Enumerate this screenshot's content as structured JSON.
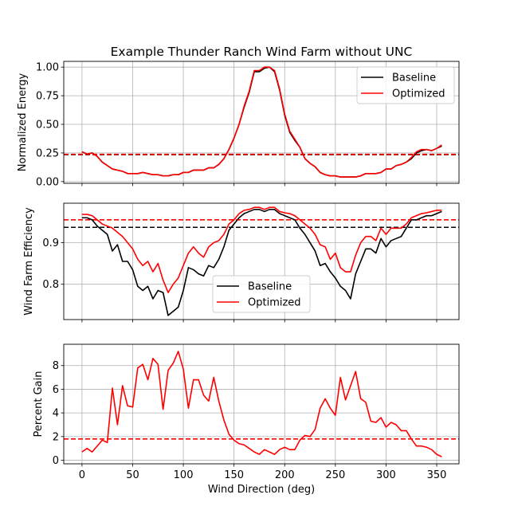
{
  "figure": {
    "title": "Example Thunder Ranch Wind Farm without UNC"
  },
  "colors": {
    "baseline": "#000000",
    "optimized": "#ff0000",
    "grid": "#b0b0b0"
  },
  "chart_data": [
    {
      "type": "line",
      "title": "Example Thunder Ranch Wind Farm without UNC",
      "xlabel": "",
      "ylabel": "Normalized Energy",
      "xlim": [
        -18,
        372
      ],
      "ylim": [
        -0.015,
        1.05
      ],
      "xticks": [
        0,
        50,
        100,
        150,
        200,
        250,
        300,
        350
      ],
      "xticklabels_visible": false,
      "yticks": [
        0.0,
        0.25,
        0.5,
        0.75,
        1.0
      ],
      "yticklabels": [
        "0.00",
        "0.25",
        "0.50",
        "0.75",
        "1.00"
      ],
      "grid": true,
      "legend": {
        "placement": "upper right",
        "entries": [
          "Baseline",
          "Optimized"
        ]
      },
      "hlines": [
        {
          "y": 0.235,
          "color": "black",
          "style": "dashed"
        },
        {
          "y": 0.238,
          "color": "red",
          "style": "dashed"
        }
      ],
      "x": [
        0,
        5,
        10,
        15,
        20,
        25,
        30,
        35,
        40,
        45,
        50,
        55,
        60,
        65,
        70,
        75,
        80,
        85,
        90,
        95,
        100,
        105,
        110,
        115,
        120,
        125,
        130,
        135,
        140,
        145,
        150,
        155,
        160,
        165,
        170,
        175,
        180,
        185,
        190,
        195,
        200,
        205,
        210,
        215,
        220,
        225,
        230,
        235,
        240,
        245,
        250,
        255,
        260,
        265,
        270,
        275,
        280,
        285,
        290,
        295,
        300,
        305,
        310,
        315,
        320,
        325,
        330,
        335,
        340,
        345,
        350,
        355
      ],
      "series": [
        {
          "name": "Baseline",
          "values": [
            0.26,
            0.24,
            0.25,
            0.22,
            0.17,
            0.14,
            0.11,
            0.1,
            0.09,
            0.07,
            0.07,
            0.07,
            0.08,
            0.07,
            0.06,
            0.06,
            0.05,
            0.05,
            0.06,
            0.06,
            0.08,
            0.08,
            0.1,
            0.1,
            0.1,
            0.12,
            0.12,
            0.15,
            0.2,
            0.28,
            0.38,
            0.5,
            0.65,
            0.78,
            0.96,
            0.96,
            0.99,
            1.0,
            0.96,
            0.8,
            0.58,
            0.43,
            0.36,
            0.3,
            0.2,
            0.16,
            0.13,
            0.08,
            0.06,
            0.05,
            0.05,
            0.04,
            0.04,
            0.04,
            0.04,
            0.05,
            0.07,
            0.07,
            0.07,
            0.08,
            0.11,
            0.11,
            0.14,
            0.15,
            0.17,
            0.2,
            0.25,
            0.27,
            0.28,
            0.27,
            0.29,
            0.31
          ]
        },
        {
          "name": "Optimized",
          "values": [
            0.26,
            0.24,
            0.25,
            0.22,
            0.17,
            0.14,
            0.11,
            0.1,
            0.09,
            0.07,
            0.07,
            0.07,
            0.08,
            0.07,
            0.06,
            0.06,
            0.05,
            0.05,
            0.06,
            0.06,
            0.08,
            0.08,
            0.1,
            0.1,
            0.1,
            0.12,
            0.12,
            0.15,
            0.2,
            0.28,
            0.38,
            0.5,
            0.66,
            0.79,
            0.97,
            0.97,
            1.0,
            1.0,
            0.97,
            0.81,
            0.59,
            0.44,
            0.37,
            0.3,
            0.2,
            0.16,
            0.13,
            0.08,
            0.06,
            0.05,
            0.05,
            0.04,
            0.04,
            0.04,
            0.04,
            0.05,
            0.07,
            0.07,
            0.07,
            0.08,
            0.11,
            0.11,
            0.14,
            0.15,
            0.17,
            0.21,
            0.26,
            0.28,
            0.28,
            0.27,
            0.29,
            0.32
          ]
        }
      ]
    },
    {
      "type": "line",
      "xlabel": "",
      "ylabel": "Wind Farm Efficiency",
      "xlim": [
        -18,
        372
      ],
      "ylim": [
        0.715,
        0.995
      ],
      "xticks": [
        0,
        50,
        100,
        150,
        200,
        250,
        300,
        350
      ],
      "xticklabels_visible": false,
      "yticks": [
        0.8,
        0.9
      ],
      "yticklabels": [
        "0.8",
        "0.9"
      ],
      "grid": true,
      "legend": {
        "placement": "lower center",
        "entries": [
          "Baseline",
          "Optimized"
        ]
      },
      "hlines": [
        {
          "y": 0.937,
          "color": "black",
          "style": "dashed"
        },
        {
          "y": 0.955,
          "color": "red",
          "style": "dashed"
        }
      ],
      "x": [
        0,
        5,
        10,
        15,
        20,
        25,
        30,
        35,
        40,
        45,
        50,
        55,
        60,
        65,
        70,
        75,
        80,
        85,
        90,
        95,
        100,
        105,
        110,
        115,
        120,
        125,
        130,
        135,
        140,
        145,
        150,
        155,
        160,
        165,
        170,
        175,
        180,
        185,
        190,
        195,
        200,
        205,
        210,
        215,
        220,
        225,
        230,
        235,
        240,
        245,
        250,
        255,
        260,
        265,
        270,
        275,
        280,
        285,
        290,
        295,
        300,
        305,
        310,
        315,
        320,
        325,
        330,
        335,
        340,
        345,
        350,
        355
      ],
      "series": [
        {
          "name": "Baseline",
          "values": [
            0.96,
            0.96,
            0.955,
            0.94,
            0.93,
            0.92,
            0.88,
            0.895,
            0.855,
            0.855,
            0.835,
            0.795,
            0.785,
            0.795,
            0.765,
            0.785,
            0.78,
            0.725,
            0.735,
            0.745,
            0.785,
            0.84,
            0.835,
            0.825,
            0.82,
            0.845,
            0.84,
            0.86,
            0.89,
            0.93,
            0.945,
            0.96,
            0.97,
            0.975,
            0.98,
            0.98,
            0.975,
            0.98,
            0.98,
            0.97,
            0.965,
            0.96,
            0.955,
            0.935,
            0.92,
            0.9,
            0.88,
            0.845,
            0.85,
            0.83,
            0.815,
            0.795,
            0.785,
            0.765,
            0.825,
            0.855,
            0.885,
            0.885,
            0.875,
            0.91,
            0.89,
            0.905,
            0.91,
            0.915,
            0.935,
            0.955,
            0.955,
            0.96,
            0.965,
            0.965,
            0.97,
            0.975
          ]
        },
        {
          "name": "Optimized",
          "values": [
            0.968,
            0.968,
            0.965,
            0.955,
            0.945,
            0.94,
            0.935,
            0.925,
            0.915,
            0.9,
            0.885,
            0.86,
            0.845,
            0.855,
            0.83,
            0.85,
            0.81,
            0.78,
            0.8,
            0.815,
            0.845,
            0.875,
            0.89,
            0.875,
            0.865,
            0.89,
            0.9,
            0.905,
            0.92,
            0.945,
            0.955,
            0.97,
            0.978,
            0.98,
            0.985,
            0.985,
            0.98,
            0.985,
            0.985,
            0.975,
            0.972,
            0.97,
            0.965,
            0.955,
            0.945,
            0.935,
            0.92,
            0.895,
            0.89,
            0.86,
            0.875,
            0.84,
            0.83,
            0.83,
            0.87,
            0.9,
            0.915,
            0.915,
            0.905,
            0.935,
            0.92,
            0.935,
            0.935,
            0.935,
            0.945,
            0.96,
            0.965,
            0.97,
            0.972,
            0.975,
            0.978,
            0.978
          ]
        }
      ]
    },
    {
      "type": "line",
      "xlabel": "Wind Direction (deg)",
      "ylabel": "Percent Gain",
      "xlim": [
        -18,
        372
      ],
      "ylim": [
        -0.3,
        9.8
      ],
      "xticks": [
        0,
        50,
        100,
        150,
        200,
        250,
        300,
        350
      ],
      "xticklabels": [
        "0",
        "50",
        "100",
        "150",
        "200",
        "250",
        "300",
        "350"
      ],
      "yticks": [
        0,
        2,
        4,
        6,
        8
      ],
      "yticklabels": [
        "0",
        "2",
        "4",
        "6",
        "8"
      ],
      "grid": true,
      "legend": null,
      "hlines": [
        {
          "y": 1.8,
          "color": "red",
          "style": "dashed"
        }
      ],
      "x": [
        0,
        5,
        10,
        15,
        20,
        25,
        30,
        35,
        40,
        45,
        50,
        55,
        60,
        65,
        70,
        75,
        80,
        85,
        90,
        95,
        100,
        105,
        110,
        115,
        120,
        125,
        130,
        135,
        140,
        145,
        150,
        155,
        160,
        165,
        170,
        175,
        180,
        185,
        190,
        195,
        200,
        205,
        210,
        215,
        220,
        225,
        230,
        235,
        240,
        245,
        250,
        255,
        260,
        265,
        270,
        275,
        280,
        285,
        290,
        295,
        300,
        305,
        310,
        315,
        320,
        325,
        330,
        335,
        340,
        345,
        350,
        355
      ],
      "series": [
        {
          "name": "Optimized",
          "values": [
            0.7,
            1.0,
            0.7,
            1.2,
            1.7,
            1.5,
            6.1,
            3.0,
            6.3,
            4.6,
            4.5,
            7.8,
            8.1,
            6.8,
            8.6,
            8.1,
            4.3,
            7.6,
            8.2,
            9.2,
            7.7,
            4.4,
            6.8,
            6.8,
            5.5,
            5.0,
            7.0,
            5.0,
            3.4,
            2.2,
            1.7,
            1.4,
            1.3,
            1.0,
            0.7,
            0.5,
            0.9,
            0.7,
            0.5,
            0.9,
            1.1,
            0.9,
            0.9,
            1.7,
            2.1,
            2.0,
            2.6,
            4.4,
            5.2,
            4.4,
            3.8,
            7.0,
            5.1,
            6.3,
            7.5,
            5.2,
            4.9,
            3.3,
            3.2,
            3.6,
            2.8,
            3.2,
            3.0,
            2.5,
            2.5,
            1.8,
            1.2,
            1.2,
            1.1,
            0.9,
            0.5,
            0.3
          ]
        }
      ]
    }
  ]
}
